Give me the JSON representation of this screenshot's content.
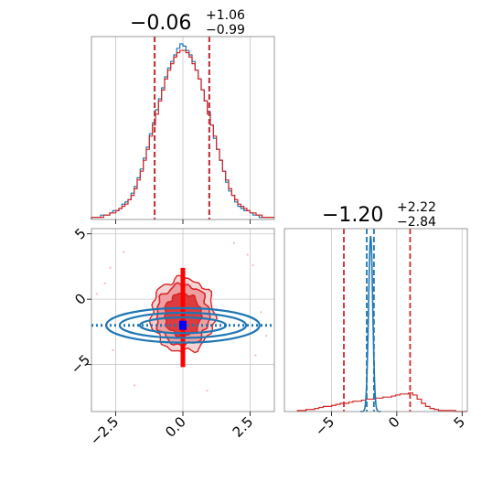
{
  "chart_data": {
    "type": "corner",
    "parameters": [
      "",
      ""
    ],
    "series": [
      {
        "name": "",
        "color": "#d62728"
      },
      {
        "name": "",
        "color": "#1f77b4"
      }
    ],
    "panels": [
      {
        "id": "hist-param-1",
        "type": "histogram",
        "title": {
          "median": "−0.06",
          "plus": "+1.06",
          "minus": "−0.99"
        },
        "xlim": [
          -3.4,
          3.4
        ],
        "grid": true,
        "bin_edges_x": [
          -3.4,
          3.4
        ],
        "red_counts": [
          1,
          1,
          1,
          1,
          2,
          2,
          3,
          3,
          4,
          5,
          6,
          7,
          9,
          11,
          14,
          18,
          22,
          27,
          32,
          38,
          43,
          48,
          54,
          59,
          64,
          68,
          71,
          74,
          76,
          77,
          77,
          76,
          74,
          71,
          68,
          64,
          59,
          54,
          48,
          43,
          38,
          32,
          27,
          22,
          18,
          14,
          11,
          9,
          7,
          6,
          5,
          4,
          3,
          3,
          2,
          2,
          1,
          1,
          1,
          1
        ],
        "blue_counts": [
          1,
          1,
          1,
          2,
          2,
          2,
          3,
          4,
          4,
          5,
          7,
          8,
          9,
          12,
          15,
          19,
          23,
          28,
          33,
          39,
          44,
          50,
          55,
          60,
          65,
          69,
          72,
          75,
          78,
          80,
          79,
          77,
          75,
          72,
          68,
          64,
          59,
          54,
          49,
          43,
          37,
          32,
          27,
          22,
          17,
          13,
          11,
          8,
          6,
          5,
          4,
          4,
          3,
          2,
          2,
          1,
          1,
          1,
          1,
          1
        ],
        "quantile_lines": [
          -1.05,
          0.98
        ],
        "xticks": [
          -2.5,
          0.0,
          2.5
        ]
      },
      {
        "id": "hist-param-2",
        "type": "histogram",
        "title": {
          "median": "−1.20",
          "plus": "+2.22",
          "minus": "−2.84"
        },
        "xlim": [
          -8.6,
          5.4
        ],
        "grid": true,
        "red_counts": [
          1,
          1,
          2,
          2,
          3,
          4,
          5,
          5,
          6,
          7,
          8,
          8,
          9,
          10,
          10,
          11,
          12,
          12,
          13,
          13,
          14,
          14,
          15,
          16,
          17,
          17,
          18,
          16,
          12,
          8,
          5,
          3,
          2,
          1,
          1,
          1,
          1
        ],
        "red_range": [
          -7.6,
          4.5
        ],
        "blue_peak": {
          "center": -2.0,
          "sigma": 0.16,
          "height": 170
        },
        "red_quantile_lines": [
          -4.05,
          1.02
        ],
        "blue_quantile_lines": [
          -2.3,
          -1.75
        ],
        "xticks": [
          -5,
          0,
          5
        ],
        "xtick_labels": [
          "−5",
          "0",
          "5"
        ]
      },
      {
        "id": "joint-param-1-2",
        "type": "contour2d",
        "xlim": [
          -3.4,
          3.4
        ],
        "ylim": [
          -8.6,
          5.4
        ],
        "grid": true,
        "xticks": [
          -2.5,
          0.0,
          2.5
        ],
        "xtick_labels": [
          "−2.5",
          "0.0",
          "2.5"
        ],
        "yticks": [
          5,
          0,
          -5
        ],
        "ytick_labels": [
          "5",
          "0",
          "−5"
        ],
        "red_center": [
          0.0,
          -1.2
        ],
        "red_sigma": [
          1.0,
          2.5
        ],
        "blue_center": [
          0.0,
          -2.0
        ],
        "blue_sigma": [
          2.4,
          0.16
        ]
      }
    ]
  }
}
